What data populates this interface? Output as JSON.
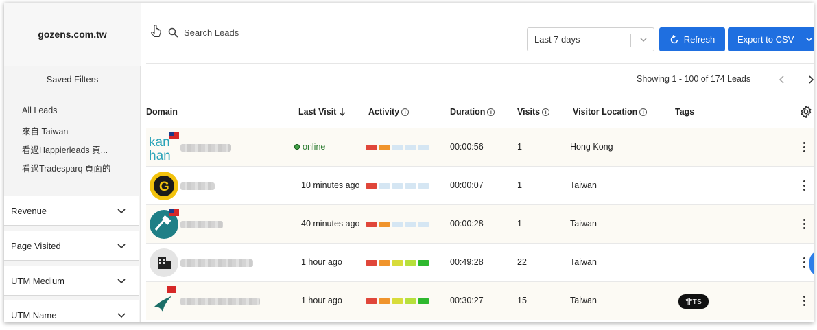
{
  "brand": "gozens.com.tw",
  "sidebar": {
    "saved_title": "Saved Filters",
    "saved_filters": [
      "All Leads",
      "來自 Taiwan",
      "看過Happierleads 頁...",
      "看過Tradesparq 頁面的"
    ],
    "filters": [
      "Revenue",
      "Page Visited",
      "UTM Medium",
      "UTM Name"
    ]
  },
  "toolbar": {
    "search_placeholder": "Search Leads",
    "date_range": "Last 7 days",
    "refresh_label": "Refresh",
    "export_label": "Export to CSV"
  },
  "pagination": {
    "text": "Showing 1 - 100 of 174 Leads"
  },
  "table": {
    "columns": [
      "Domain",
      "Last Visit",
      "Activity",
      "Duration",
      "Visits",
      "Visitor Location",
      "Tags"
    ],
    "rows": [
      {
        "last_visit": "online",
        "duration": "00:00:56",
        "visits": "1",
        "location": "Hong Kong",
        "tag": "",
        "activity": 2,
        "flag": "TW"
      },
      {
        "last_visit": "10 minutes ago",
        "duration": "00:00:07",
        "visits": "1",
        "location": "Taiwan",
        "tag": "",
        "activity": 1,
        "flag": ""
      },
      {
        "last_visit": "40 minutes ago",
        "duration": "00:00:28",
        "visits": "1",
        "location": "Taiwan",
        "tag": "",
        "activity": 2,
        "flag": "TW"
      },
      {
        "last_visit": "1 hour ago",
        "duration": "00:49:28",
        "visits": "22",
        "location": "Taiwan",
        "tag": "",
        "activity": 5,
        "flag": ""
      },
      {
        "last_visit": "1 hour ago",
        "duration": "00:30:27",
        "visits": "15",
        "location": "Taiwan",
        "tag": "非TS",
        "activity": 5,
        "flag": "HK"
      }
    ]
  },
  "colors": {
    "primary": "#1f6fe0",
    "activity": [
      "#e0463a",
      "#f0942c",
      "#d8dc3a",
      "#b7e03c",
      "#2eb82e"
    ],
    "inactive": "#d5e6f3"
  }
}
